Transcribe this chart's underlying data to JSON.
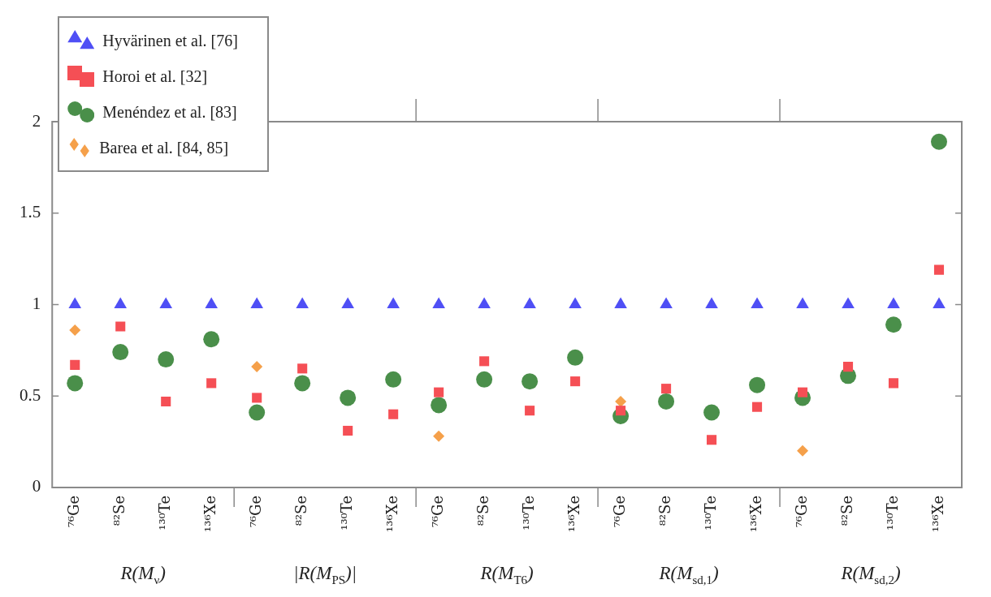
{
  "chart_data": {
    "type": "scatter",
    "categories": [
      "⁷⁶Ge",
      "⁸²Se",
      "¹³⁰Te",
      "¹³⁶Xe",
      "⁷⁶Ge",
      "⁸²Se",
      "¹³⁰Te",
      "¹³⁶Xe",
      "⁷⁶Ge",
      "⁸²Se",
      "¹³⁰Te",
      "¹³⁶Xe",
      "⁷⁶Ge",
      "⁸²Se",
      "¹³⁰Te",
      "¹³⁶Xe",
      "⁷⁶Ge",
      "⁸²Se",
      "¹³⁰Te",
      "¹³⁶Xe"
    ],
    "annotations": [
      "R(M$_{ν}$)",
      "|R(M$_{PS}$)|",
      "R(M$_{T6}$)",
      "R(M$_{sd,1}$)",
      "R(M$_{sd,2}$)"
    ],
    "series": [
      {
        "name": "Hyvärinen et al. [76]",
        "color": "#4f4ff5",
        "marker": "triangle",
        "values": [
          1,
          1,
          1,
          1,
          1,
          1,
          1,
          1,
          1,
          1,
          1,
          1,
          1,
          1,
          1,
          1,
          1,
          1,
          1,
          1
        ]
      },
      {
        "name": "Horoi et al. [32]",
        "color": "#f54f55",
        "marker": "square",
        "values": [
          0.67,
          0.88,
          0.47,
          0.57,
          0.49,
          0.65,
          0.31,
          0.4,
          0.52,
          0.69,
          0.42,
          0.58,
          0.42,
          0.54,
          0.26,
          0.44,
          0.52,
          0.66,
          0.57,
          1.19
        ]
      },
      {
        "name": "Menéndez et al. [83]",
        "color": "#4a8f4a",
        "marker": "circle",
        "values": [
          0.57,
          0.74,
          0.7,
          0.81,
          0.41,
          0.57,
          0.49,
          0.59,
          0.45,
          0.59,
          0.58,
          0.71,
          0.39,
          0.47,
          0.41,
          0.56,
          0.49,
          0.61,
          0.89,
          1.89
        ]
      },
      {
        "name": "Barea et al. [84, 85]",
        "color": "#f5a04a",
        "marker": "diamond",
        "values": [
          0.86,
          null,
          null,
          null,
          0.66,
          null,
          null,
          null,
          0.28,
          null,
          null,
          null,
          0.47,
          null,
          null,
          null,
          0.2,
          null,
          null,
          null
        ]
      }
    ],
    "ylim": [
      0,
      2
    ],
    "yticks": [
      0,
      {
        "value": 0.5,
        "label": "0.5"
      },
      1,
      {
        "value": 1.5,
        "label": "1.5"
      },
      2
    ],
    "grid": false,
    "legend": "top left"
  }
}
